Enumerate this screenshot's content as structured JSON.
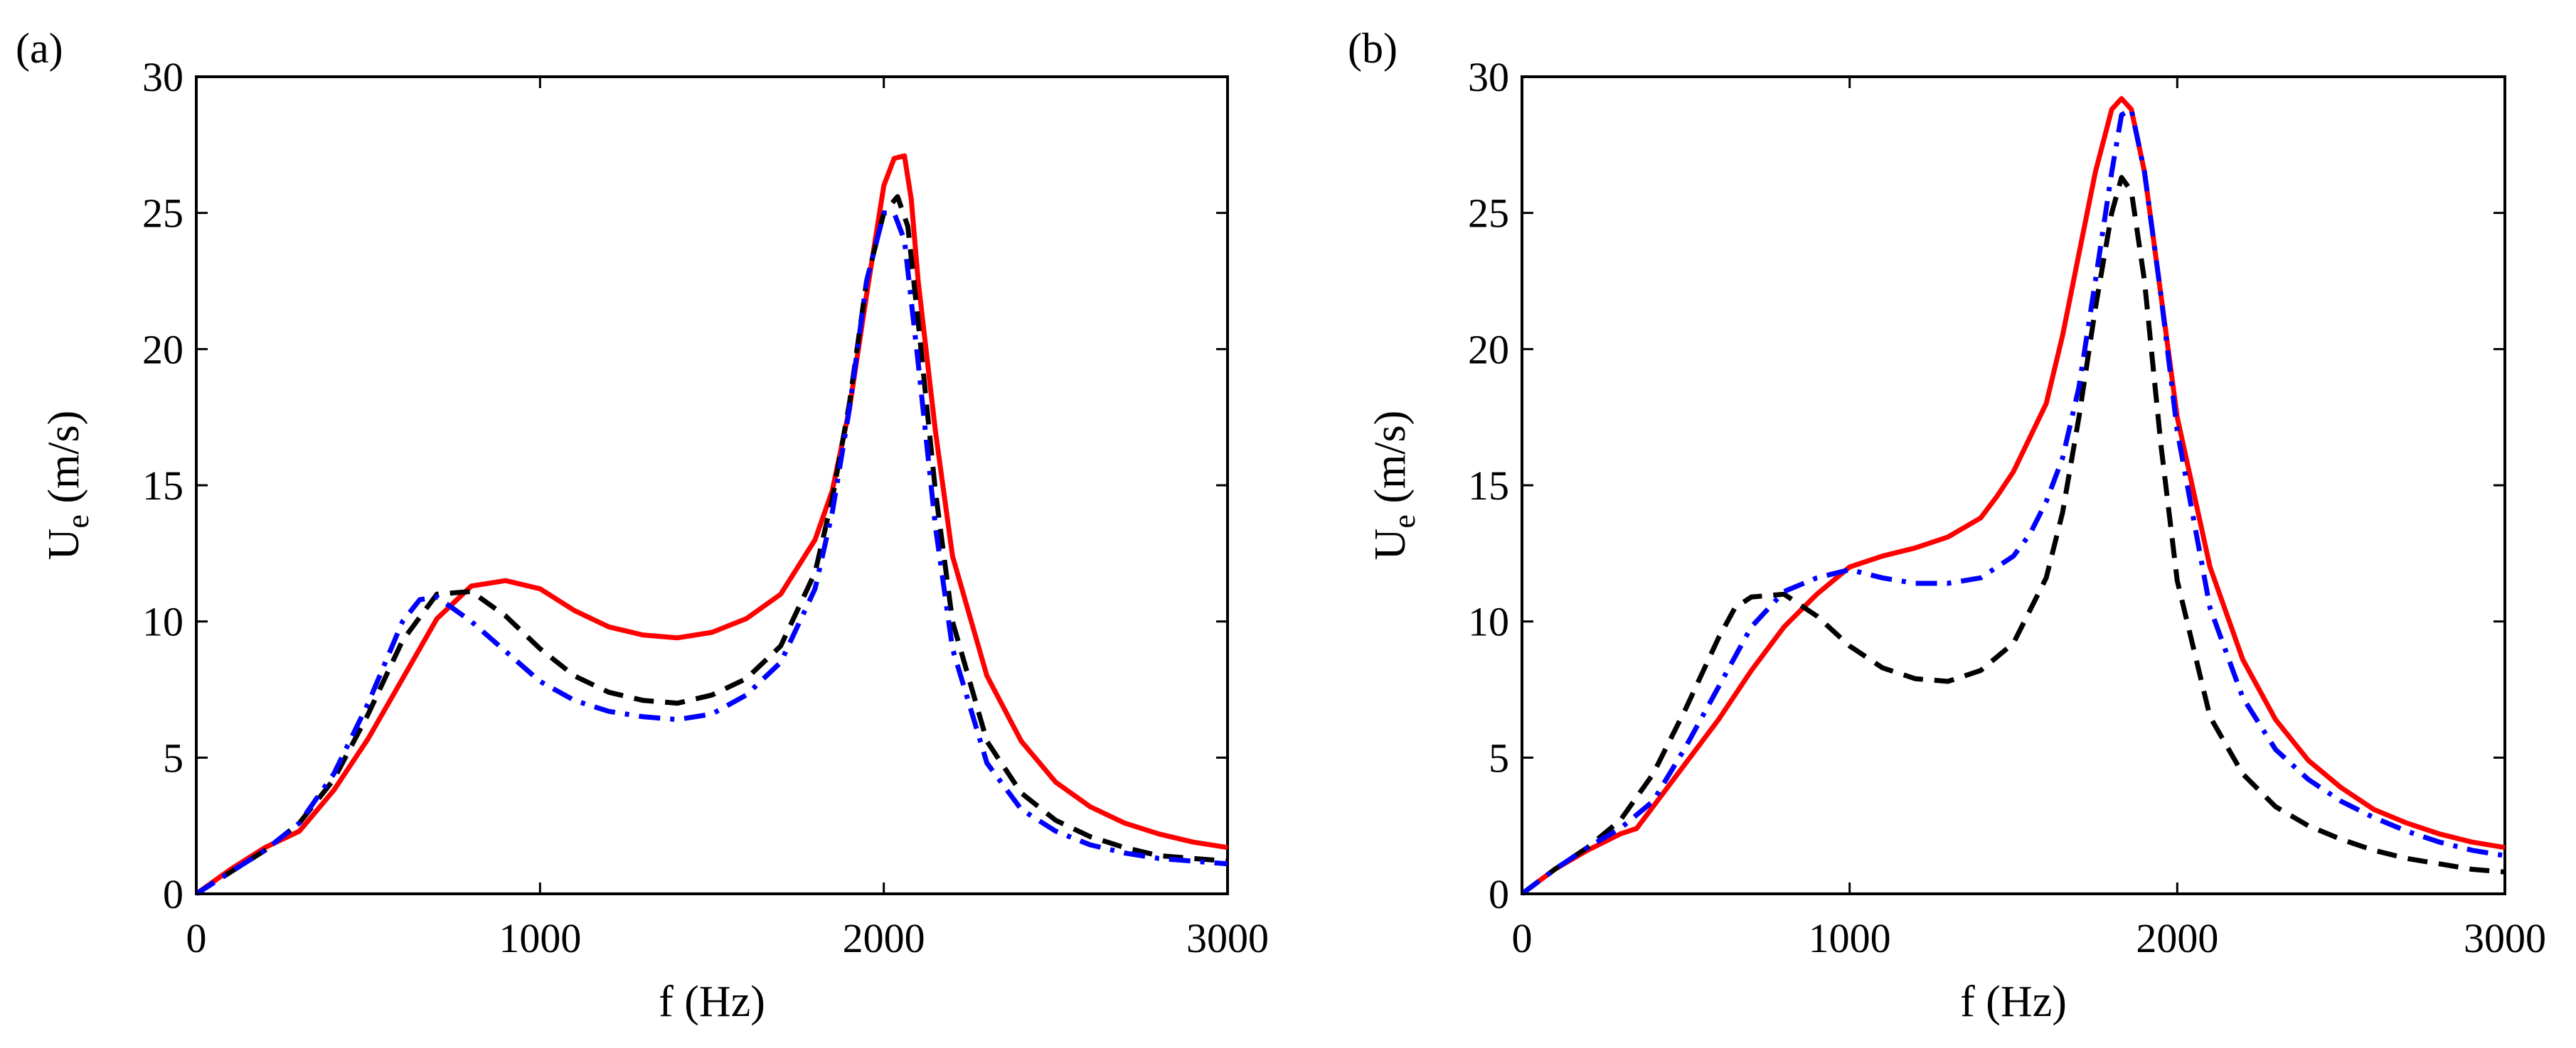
{
  "figure": {
    "panels": [
      "(a)",
      "(b)"
    ]
  },
  "colors": {
    "red": "#ff0000",
    "blue": "#0000ff",
    "black": "#000000"
  },
  "chart_data": [
    {
      "type": "line",
      "panel_label": "(a)",
      "xlabel": "f (Hz)",
      "ylabel_main": "U",
      "ylabel_sub": "e",
      "ylabel_unit": "(m/s)",
      "xlim": [
        0,
        3000
      ],
      "ylim": [
        0,
        30
      ],
      "xticks": [
        0,
        1000,
        2000,
        3000
      ],
      "yticks": [
        0,
        5,
        10,
        15,
        20,
        25,
        30
      ],
      "grid": false,
      "series": [
        {
          "name": "solid-red",
          "color": "#ff0000",
          "dash": "solid",
          "x": [
            0,
            100,
            200,
            300,
            400,
            500,
            600,
            700,
            800,
            900,
            1000,
            1100,
            1200,
            1300,
            1400,
            1500,
            1600,
            1700,
            1800,
            1850,
            1900,
            1950,
            2000,
            2030,
            2060,
            2080,
            2100,
            2150,
            2200,
            2300,
            2400,
            2500,
            2600,
            2700,
            2800,
            2900,
            3000
          ],
          "y": [
            0,
            0.9,
            1.7,
            2.3,
            3.8,
            5.7,
            7.9,
            10.1,
            11.3,
            11.5,
            11.2,
            10.4,
            9.8,
            9.5,
            9.4,
            9.6,
            10.1,
            11.0,
            13.0,
            14.8,
            17.8,
            22.0,
            26.0,
            27.0,
            27.1,
            25.5,
            22.5,
            17.0,
            12.4,
            8.0,
            5.6,
            4.1,
            3.2,
            2.6,
            2.2,
            1.9,
            1.7
          ]
        },
        {
          "name": "dashed-black",
          "color": "#000000",
          "dash": "dashed",
          "x": [
            0,
            100,
            200,
            300,
            400,
            500,
            600,
            700,
            800,
            900,
            1000,
            1100,
            1200,
            1300,
            1400,
            1500,
            1600,
            1700,
            1800,
            1850,
            1900,
            1950,
            2000,
            2040,
            2070,
            2100,
            2150,
            2200,
            2300,
            2400,
            2500,
            2600,
            2700,
            2800,
            2900,
            3000
          ],
          "y": [
            0,
            0.8,
            1.6,
            2.6,
            4.2,
            6.6,
            9.3,
            11.0,
            11.1,
            10.2,
            9.0,
            8.0,
            7.4,
            7.1,
            7.0,
            7.3,
            7.9,
            9.1,
            11.8,
            14.5,
            18.0,
            22.5,
            25.0,
            25.6,
            24.5,
            21.0,
            14.8,
            10.0,
            5.6,
            3.7,
            2.7,
            2.1,
            1.7,
            1.4,
            1.3,
            1.2
          ]
        },
        {
          "name": "dashdot-blue",
          "color": "#0000ff",
          "dash": "dashdot",
          "x": [
            0,
            100,
            200,
            300,
            400,
            500,
            600,
            650,
            700,
            800,
            900,
            1000,
            1100,
            1200,
            1300,
            1400,
            1500,
            1600,
            1700,
            1800,
            1850,
            1900,
            1950,
            2000,
            2030,
            2060,
            2100,
            2150,
            2200,
            2300,
            2400,
            2500,
            2600,
            2700,
            2800,
            2900,
            3000
          ],
          "y": [
            0,
            0.8,
            1.6,
            2.6,
            4.4,
            7.0,
            10.0,
            10.8,
            10.9,
            10.0,
            8.9,
            7.8,
            7.1,
            6.7,
            6.5,
            6.4,
            6.6,
            7.3,
            8.5,
            11.2,
            14.0,
            17.8,
            22.5,
            25.0,
            25.0,
            24.0,
            19.5,
            13.5,
            9.0,
            4.8,
            3.1,
            2.3,
            1.8,
            1.5,
            1.3,
            1.2,
            1.1
          ]
        }
      ]
    },
    {
      "type": "line",
      "panel_label": "(b)",
      "xlabel": "f (Hz)",
      "ylabel_main": "U",
      "ylabel_sub": "e",
      "ylabel_unit": "(m/s)",
      "xlim": [
        0,
        3000
      ],
      "ylim": [
        0,
        30
      ],
      "xticks": [
        0,
        1000,
        2000,
        3000
      ],
      "yticks": [
        0,
        5,
        10,
        15,
        20,
        25,
        30
      ],
      "grid": false,
      "series": [
        {
          "name": "solid-red",
          "color": "#ff0000",
          "dash": "solid",
          "x": [
            0,
            100,
            200,
            300,
            350,
            400,
            500,
            600,
            700,
            800,
            900,
            1000,
            1100,
            1200,
            1300,
            1400,
            1450,
            1500,
            1600,
            1650,
            1700,
            1750,
            1800,
            1830,
            1860,
            1900,
            1950,
            2000,
            2100,
            2200,
            2300,
            2400,
            2500,
            2600,
            2700,
            2800,
            2900,
            3000
          ],
          "y": [
            0,
            0.9,
            1.6,
            2.2,
            2.4,
            3.2,
            4.8,
            6.4,
            8.2,
            9.8,
            11.0,
            12.0,
            12.4,
            12.7,
            13.1,
            13.8,
            14.6,
            15.5,
            18.0,
            20.5,
            23.5,
            26.5,
            28.8,
            29.2,
            28.8,
            26.5,
            22.0,
            17.5,
            12.0,
            8.6,
            6.4,
            4.9,
            3.9,
            3.1,
            2.6,
            2.2,
            1.9,
            1.7
          ]
        },
        {
          "name": "dashed-black",
          "color": "#000000",
          "dash": "dashed",
          "x": [
            0,
            100,
            200,
            300,
            400,
            500,
            600,
            650,
            700,
            800,
            900,
            1000,
            1100,
            1200,
            1300,
            1400,
            1500,
            1600,
            1650,
            1700,
            1750,
            1800,
            1830,
            1860,
            1900,
            1950,
            2000,
            2100,
            2200,
            2300,
            2400,
            2500,
            2600,
            2700,
            2800,
            2900,
            3000
          ],
          "y": [
            0,
            0.9,
            1.7,
            2.7,
            4.4,
            6.8,
            9.4,
            10.5,
            10.9,
            11.0,
            10.2,
            9.1,
            8.3,
            7.9,
            7.8,
            8.2,
            9.2,
            11.6,
            14.0,
            17.5,
            21.5,
            25.0,
            26.3,
            25.8,
            22.5,
            16.5,
            11.5,
            6.5,
            4.4,
            3.2,
            2.5,
            2.0,
            1.6,
            1.3,
            1.1,
            0.9,
            0.8
          ]
        },
        {
          "name": "dashdot-blue",
          "color": "#0000ff",
          "dash": "dashdot",
          "x": [
            0,
            100,
            200,
            300,
            400,
            500,
            600,
            700,
            800,
            900,
            1000,
            1100,
            1200,
            1300,
            1400,
            1500,
            1550,
            1600,
            1650,
            1700,
            1750,
            1800,
            1830,
            1860,
            1900,
            1950,
            2000,
            2100,
            2200,
            2300,
            2400,
            2500,
            2600,
            2700,
            2800,
            2900,
            3000
          ],
          "y": [
            0,
            0.9,
            1.7,
            2.4,
            3.4,
            5.4,
            7.6,
            9.8,
            11.1,
            11.6,
            11.9,
            11.6,
            11.4,
            11.4,
            11.6,
            12.4,
            13.2,
            14.4,
            16.0,
            18.6,
            22.5,
            26.5,
            28.6,
            28.8,
            26.5,
            22.0,
            17.0,
            10.5,
            7.2,
            5.3,
            4.2,
            3.4,
            2.8,
            2.3,
            1.9,
            1.6,
            1.4
          ]
        }
      ]
    }
  ]
}
